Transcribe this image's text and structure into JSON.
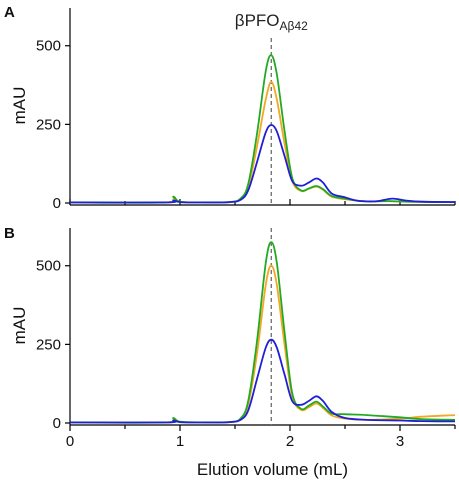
{
  "chart_data": [
    {
      "panel": "A",
      "type": "line",
      "ylabel": "mAU",
      "xlabel": "",
      "xlim": [
        0,
        3.5
      ],
      "ylim": [
        0,
        620
      ],
      "yticks": [
        0,
        250,
        500
      ],
      "xticks": [],
      "annotation": {
        "text": "βPFO",
        "sub": "Aβ42",
        "x": 1.83
      },
      "colors": {
        "blue": "#1f1fd6",
        "orange": "#f5a623",
        "green": "#22aa22"
      },
      "series": [
        {
          "color": "#f5a623",
          "points": [
            [
              0,
              2
            ],
            [
              0.88,
              2
            ],
            [
              0.94,
              12
            ],
            [
              1.0,
              3
            ],
            [
              1.2,
              2
            ],
            [
              1.45,
              3
            ],
            [
              1.55,
              12
            ],
            [
              1.62,
              50
            ],
            [
              1.7,
              180
            ],
            [
              1.78,
              330
            ],
            [
              1.83,
              385
            ],
            [
              1.88,
              330
            ],
            [
              1.95,
              190
            ],
            [
              2.02,
              70
            ],
            [
              2.1,
              38
            ],
            [
              2.17,
              45
            ],
            [
              2.24,
              52
            ],
            [
              2.3,
              42
            ],
            [
              2.38,
              20
            ],
            [
              2.5,
              12
            ],
            [
              2.6,
              8
            ],
            [
              2.7,
              5
            ],
            [
              2.9,
              6
            ],
            [
              3.1,
              4
            ],
            [
              3.5,
              3
            ]
          ]
        },
        {
          "color": "#22aa22",
          "points": [
            [
              0,
              2
            ],
            [
              0.88,
              2
            ],
            [
              0.94,
              20
            ],
            [
              1.0,
              4
            ],
            [
              1.2,
              2
            ],
            [
              1.45,
              3
            ],
            [
              1.55,
              14
            ],
            [
              1.62,
              60
            ],
            [
              1.7,
              220
            ],
            [
              1.78,
              420
            ],
            [
              1.83,
              470
            ],
            [
              1.88,
              410
            ],
            [
              1.95,
              230
            ],
            [
              2.02,
              80
            ],
            [
              2.1,
              40
            ],
            [
              2.17,
              46
            ],
            [
              2.24,
              54
            ],
            [
              2.3,
              44
            ],
            [
              2.38,
              22
            ],
            [
              2.5,
              14
            ],
            [
              2.6,
              8
            ],
            [
              2.7,
              5
            ],
            [
              2.9,
              6
            ],
            [
              3.1,
              4
            ],
            [
              3.5,
              3
            ]
          ]
        },
        {
          "color": "#1f1fd6",
          "points": [
            [
              0,
              2
            ],
            [
              0.88,
              2
            ],
            [
              0.94,
              8
            ],
            [
              1.0,
              3
            ],
            [
              1.2,
              2
            ],
            [
              1.45,
              3
            ],
            [
              1.55,
              10
            ],
            [
              1.62,
              40
            ],
            [
              1.7,
              130
            ],
            [
              1.78,
              225
            ],
            [
              1.83,
              248
            ],
            [
              1.88,
              228
            ],
            [
              1.95,
              150
            ],
            [
              2.02,
              70
            ],
            [
              2.1,
              55
            ],
            [
              2.17,
              65
            ],
            [
              2.24,
              78
            ],
            [
              2.3,
              65
            ],
            [
              2.38,
              30
            ],
            [
              2.5,
              18
            ],
            [
              2.6,
              8
            ],
            [
              2.7,
              5
            ],
            [
              2.8,
              6
            ],
            [
              2.93,
              14
            ],
            [
              3.05,
              8
            ],
            [
              3.2,
              4
            ],
            [
              3.5,
              3
            ]
          ]
        }
      ]
    },
    {
      "panel": "B",
      "type": "line",
      "ylabel": "mAU",
      "xlabel": "Elution volume (mL)",
      "xlim": [
        0,
        3.5
      ],
      "ylim": [
        0,
        620
      ],
      "yticks": [
        0,
        250,
        500
      ],
      "xticks": [
        0,
        1,
        2,
        3
      ],
      "colors": {
        "blue": "#1f1fd6",
        "orange": "#f5a623",
        "green": "#22aa22"
      },
      "series": [
        {
          "color": "#f5a623",
          "points": [
            [
              0,
              2
            ],
            [
              0.88,
              2
            ],
            [
              0.94,
              10
            ],
            [
              1.0,
              3
            ],
            [
              1.2,
              2
            ],
            [
              1.45,
              3
            ],
            [
              1.55,
              12
            ],
            [
              1.62,
              60
            ],
            [
              1.7,
              220
            ],
            [
              1.78,
              440
            ],
            [
              1.83,
              500
            ],
            [
              1.88,
              440
            ],
            [
              1.95,
              250
            ],
            [
              2.02,
              85
            ],
            [
              2.1,
              42
            ],
            [
              2.17,
              50
            ],
            [
              2.24,
              62
            ],
            [
              2.3,
              48
            ],
            [
              2.38,
              24
            ],
            [
              2.5,
              14
            ],
            [
              2.7,
              10
            ],
            [
              3.0,
              14
            ],
            [
              3.2,
              20
            ],
            [
              3.5,
              25
            ]
          ]
        },
        {
          "color": "#22aa22",
          "points": [
            [
              0,
              2
            ],
            [
              0.88,
              2
            ],
            [
              0.94,
              16
            ],
            [
              1.0,
              4
            ],
            [
              1.2,
              2
            ],
            [
              1.45,
              3
            ],
            [
              1.55,
              14
            ],
            [
              1.62,
              70
            ],
            [
              1.7,
              260
            ],
            [
              1.78,
              510
            ],
            [
              1.83,
              575
            ],
            [
              1.88,
              510
            ],
            [
              1.95,
              290
            ],
            [
              2.02,
              95
            ],
            [
              2.1,
              45
            ],
            [
              2.17,
              55
            ],
            [
              2.24,
              68
            ],
            [
              2.3,
              52
            ],
            [
              2.38,
              30
            ],
            [
              2.5,
              28
            ],
            [
              2.7,
              25
            ],
            [
              3.0,
              18
            ],
            [
              3.2,
              12
            ],
            [
              3.5,
              10
            ]
          ]
        },
        {
          "color": "#1f1fd6",
          "points": [
            [
              0,
              2
            ],
            [
              0.88,
              2
            ],
            [
              0.94,
              8
            ],
            [
              1.0,
              3
            ],
            [
              1.2,
              2
            ],
            [
              1.45,
              3
            ],
            [
              1.55,
              10
            ],
            [
              1.62,
              40
            ],
            [
              1.7,
              140
            ],
            [
              1.78,
              240
            ],
            [
              1.83,
              265
            ],
            [
              1.88,
              240
            ],
            [
              1.95,
              155
            ],
            [
              2.02,
              70
            ],
            [
              2.1,
              58
            ],
            [
              2.17,
              70
            ],
            [
              2.24,
              85
            ],
            [
              2.3,
              70
            ],
            [
              2.38,
              35
            ],
            [
              2.5,
              16
            ],
            [
              2.7,
              10
            ],
            [
              3.0,
              8
            ],
            [
              3.2,
              6
            ],
            [
              3.5,
              5
            ]
          ]
        }
      ]
    }
  ]
}
